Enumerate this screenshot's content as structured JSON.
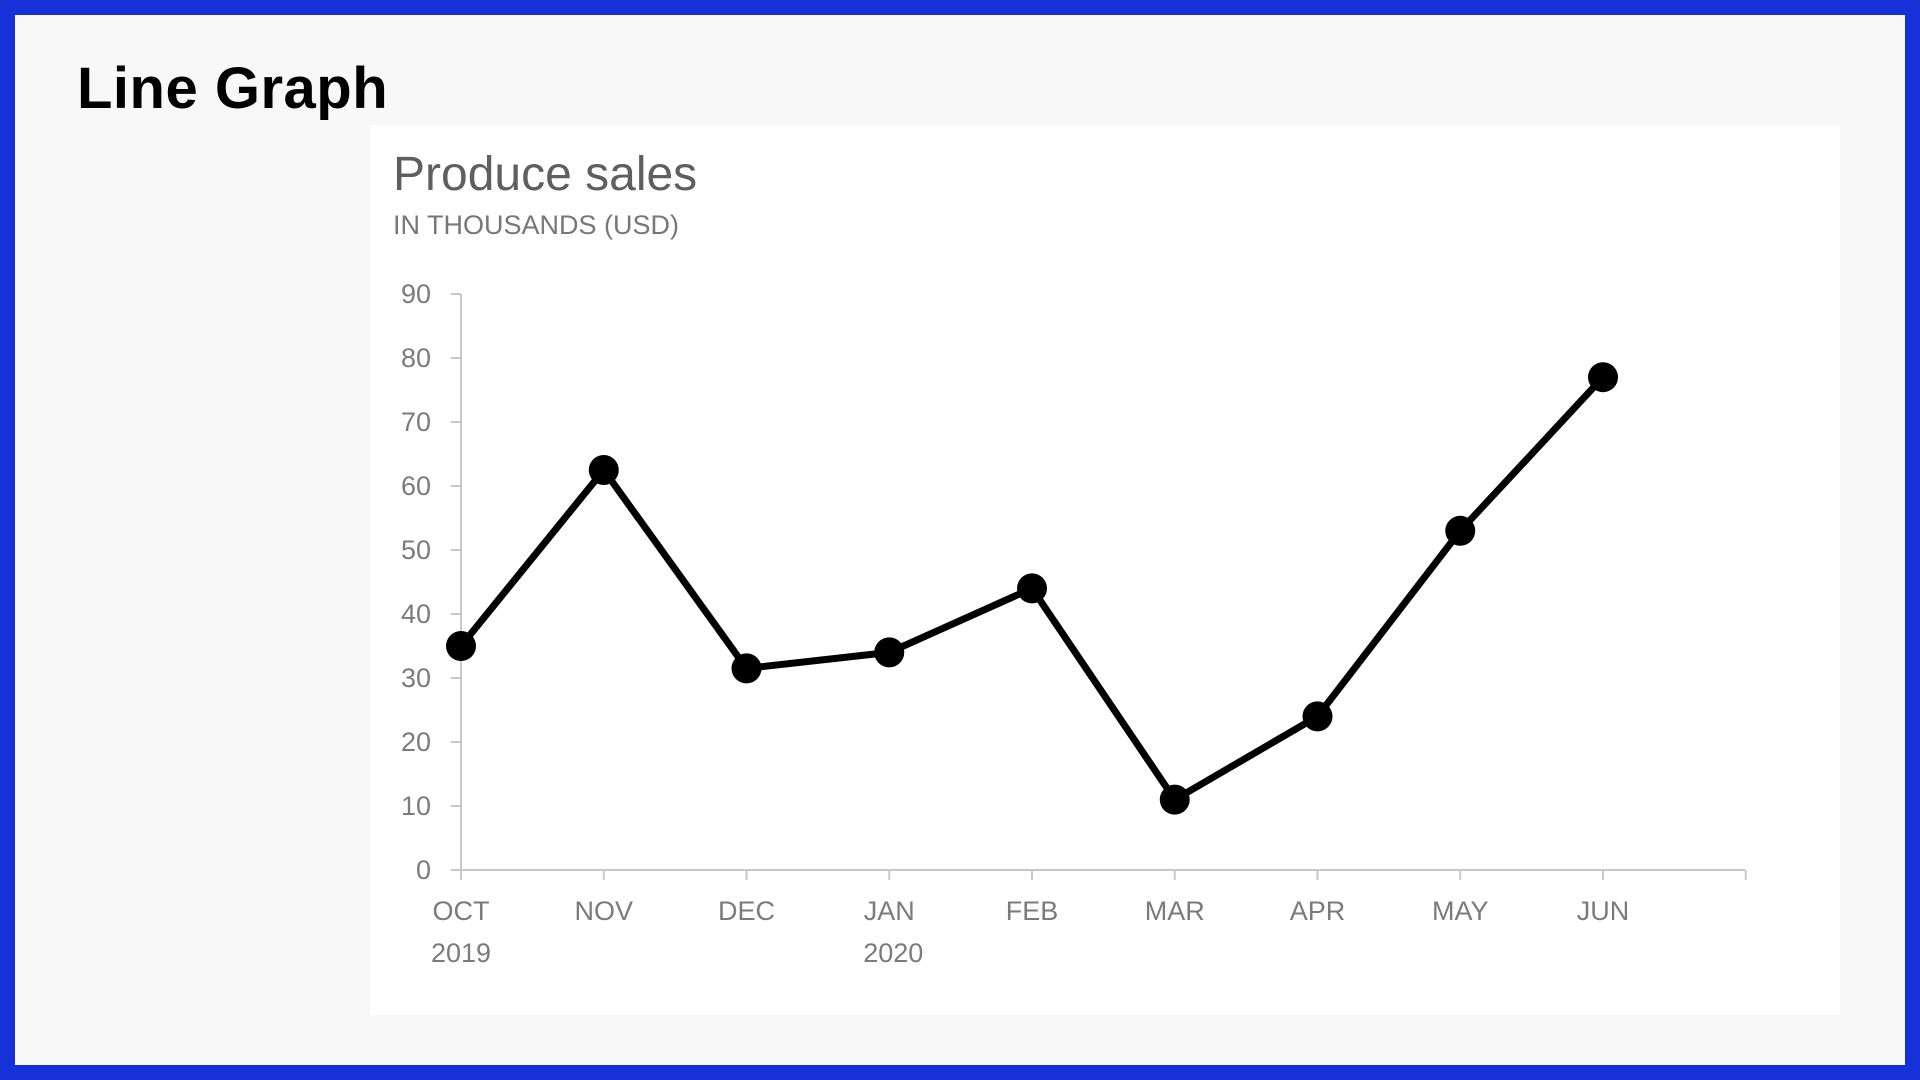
{
  "page": {
    "heading": "Line Graph"
  },
  "chart_data": {
    "type": "line",
    "title": "Produce sales",
    "subtitle": "IN THOUSANDS (USD)",
    "categories": [
      "OCT",
      "NOV",
      "DEC",
      "JAN",
      "FEB",
      "MAR",
      "APR",
      "MAY",
      "JUN"
    ],
    "category_sublabels": [
      "2019",
      "",
      "",
      "2020",
      "",
      "",
      "",
      "",
      ""
    ],
    "values": [
      35,
      62.5,
      31.5,
      34,
      44,
      11,
      24,
      53,
      77
    ],
    "yticks": [
      0,
      10,
      20,
      30,
      40,
      50,
      60,
      70,
      80,
      90
    ],
    "ylim": [
      0,
      90
    ],
    "grid": false,
    "legend": "none",
    "line_color": "#000000",
    "axis_color": "#c8c8c8"
  }
}
